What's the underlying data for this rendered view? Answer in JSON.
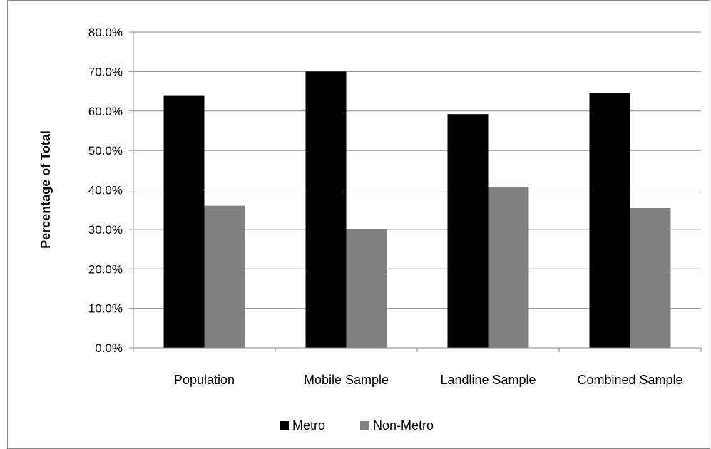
{
  "chart_data": {
    "type": "bar",
    "categories": [
      "Population",
      "Mobile Sample",
      "Landline Sample",
      "Combined Sample"
    ],
    "series": [
      {
        "name": "Metro",
        "values": [
          64.0,
          70.0,
          59.2,
          64.6
        ],
        "color": "#000000"
      },
      {
        "name": "Non-Metro",
        "values": [
          36.0,
          30.0,
          40.8,
          35.4
        ],
        "color": "#808080"
      }
    ],
    "title": "",
    "xlabel": "",
    "ylabel": "Percentage of Total",
    "ylim": [
      0,
      80
    ],
    "yticks": [
      0,
      10,
      20,
      30,
      40,
      50,
      60,
      70,
      80
    ],
    "ytick_labels": [
      "0.0%",
      "10.0%",
      "20.0%",
      "30.0%",
      "40.0%",
      "50.0%",
      "60.0%",
      "70.0%",
      "80.0%"
    ],
    "grid": true,
    "legend_position": "bottom"
  }
}
